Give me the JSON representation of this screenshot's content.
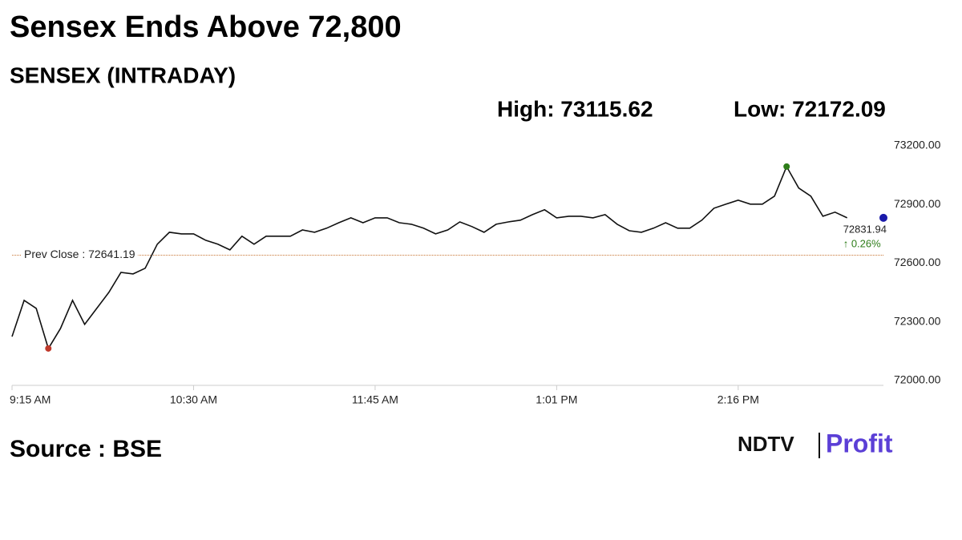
{
  "chart_data": {
    "type": "line",
    "title": "Sensex Ends Above 72,800",
    "subtitle": "SENSEX (INTRADAY)",
    "high_label": "High: 73115.62",
    "low_label": "Low: 72172.09",
    "last_label": "72831.94",
    "change_label": "↑ 0.26%",
    "source": "Source : BSE",
    "logo": [
      "NDTV",
      "Profit"
    ],
    "reference_line": {
      "value": 72641.19,
      "label": "Prev Close : 72641.19"
    },
    "categories": [
      "9:15 AM",
      null,
      null,
      null,
      null,
      null,
      null,
      null,
      null,
      null,
      null,
      null,
      null,
      null,
      null,
      "10:30 AM",
      null,
      null,
      null,
      null,
      null,
      null,
      null,
      null,
      null,
      null,
      null,
      null,
      null,
      null,
      "11:45 AM",
      null,
      null,
      null,
      null,
      null,
      null,
      null,
      null,
      null,
      null,
      null,
      null,
      null,
      null,
      "1:01 PM",
      null,
      null,
      null,
      null,
      null,
      null,
      null,
      null,
      null,
      null,
      null,
      null,
      null,
      null,
      "2:16 PM",
      null,
      null,
      null,
      null,
      null,
      null,
      null,
      null,
      null,
      null,
      null,
      null
    ],
    "series": [
      {
        "name": "SENSEX",
        "color": "#111111",
        "values": [
          72225,
          72410,
          72369,
          72164,
          72266,
          72410,
          72287,
          72369,
          72451,
          72553,
          72545,
          72574,
          72697,
          72758,
          72750,
          72750,
          72717,
          72697,
          72668,
          72738,
          72697,
          72738,
          72738,
          72738,
          72770,
          72758,
          72779,
          72807,
          72832,
          72807,
          72832,
          72832,
          72807,
          72799,
          72779,
          72750,
          72770,
          72811,
          72787,
          72758,
          72799,
          72811,
          72820,
          72848,
          72873,
          72832,
          72840,
          72840,
          72832,
          72848,
          72799,
          72766,
          72758,
          72779,
          72807,
          72779,
          72779,
          72820,
          72881,
          72902,
          72922,
          72902,
          72902,
          72943,
          73094,
          72984,
          72943,
          72840,
          72861,
          72832,
          null,
          null,
          null
        ]
      }
    ],
    "ylim": [
      72000,
      73200
    ],
    "yticks": [
      {
        "value": 72000,
        "label": "72000.00"
      },
      {
        "value": 72300,
        "label": "72300.00"
      },
      {
        "value": 72600,
        "label": "72600.00"
      },
      {
        "value": 72900,
        "label": "72900.00"
      },
      {
        "value": 73200,
        "label": "73200.00"
      }
    ],
    "high_color": "#2e7d1a",
    "low_color": "#c0392b",
    "end_color": "#1a1aaa",
    "change_color": "#2e7d1a"
  }
}
